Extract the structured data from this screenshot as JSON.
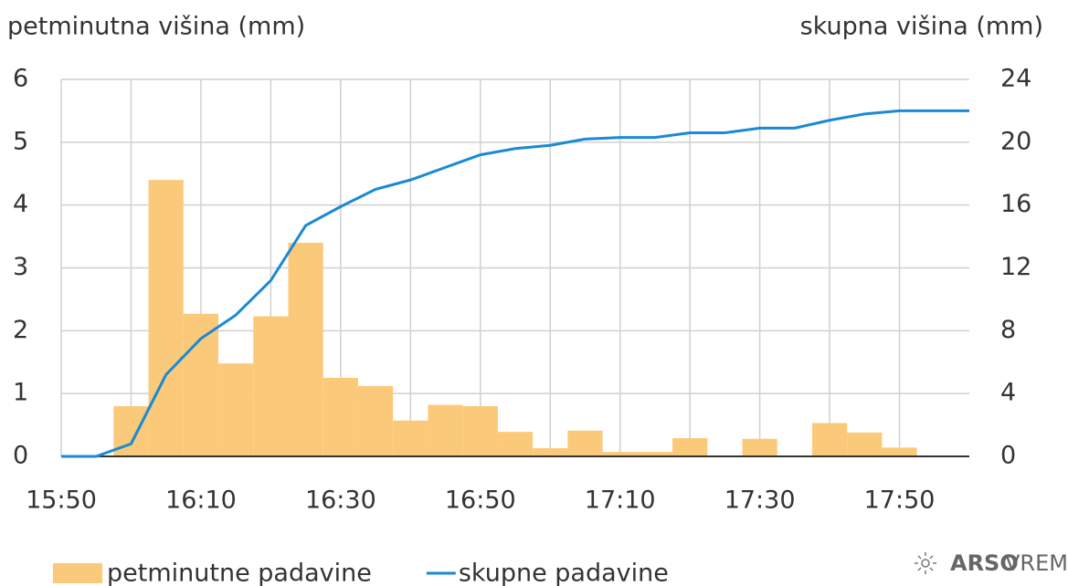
{
  "chart_data": {
    "type": "bar_line",
    "y_label": "petminutna višina (mm)",
    "y2_label": "skupna višina (mm)",
    "xlim": [
      "15:50",
      "18:00"
    ],
    "xticks": [
      "15:50",
      "16:10",
      "16:30",
      "16:50",
      "17:10",
      "17:30",
      "17:50"
    ],
    "x_minor_ticks": [
      "16:00",
      "16:20",
      "16:40",
      "17:00",
      "17:20",
      "17:40"
    ],
    "ylim": [
      0,
      6
    ],
    "yticks": [
      0,
      1,
      2,
      3,
      4,
      5,
      6
    ],
    "y2lim": [
      0,
      24
    ],
    "y2ticks": [
      0,
      4,
      8,
      12,
      16,
      20,
      24
    ],
    "grid": true,
    "series": [
      {
        "name": "petminutne padavine",
        "type": "bar",
        "color": "#fbc97a",
        "x": [
          "16:00",
          "16:05",
          "16:10",
          "16:15",
          "16:20",
          "16:25",
          "16:30",
          "16:35",
          "16:40",
          "16:45",
          "16:50",
          "16:55",
          "17:00",
          "17:05",
          "17:10",
          "17:15",
          "17:20",
          "17:25",
          "17:30",
          "17:35",
          "17:40",
          "17:45",
          "17:50",
          "17:55"
        ],
        "values": [
          0.8,
          4.4,
          2.27,
          1.48,
          2.23,
          3.4,
          1.25,
          1.12,
          0.57,
          0.82,
          0.8,
          0.39,
          0.13,
          0.41,
          0.07,
          0.07,
          0.29,
          0,
          0.28,
          0,
          0.53,
          0.38,
          0.14,
          0
        ]
      },
      {
        "name": "skupne padavine",
        "type": "line",
        "axis": "y2",
        "color": "#1a8ad4",
        "x": [
          "15:50",
          "15:55",
          "16:00",
          "16:05",
          "16:10",
          "16:15",
          "16:20",
          "16:25",
          "16:30",
          "16:35",
          "16:40",
          "16:45",
          "16:50",
          "16:55",
          "17:00",
          "17:05",
          "17:10",
          "17:15",
          "17:20",
          "17:25",
          "17:30",
          "17:35",
          "17:40",
          "17:45",
          "17:50",
          "17:55",
          "18:00"
        ],
        "values": [
          0,
          0,
          0.8,
          5.2,
          7.5,
          9.0,
          11.2,
          14.7,
          15.9,
          17.0,
          17.6,
          18.4,
          19.2,
          19.6,
          19.8,
          20.2,
          20.3,
          20.3,
          20.6,
          20.6,
          20.9,
          20.9,
          21.4,
          21.8,
          22.0,
          22.0,
          22.0
        ]
      }
    ]
  },
  "brand": {
    "bold": "ARSO",
    "light": "VREME"
  }
}
